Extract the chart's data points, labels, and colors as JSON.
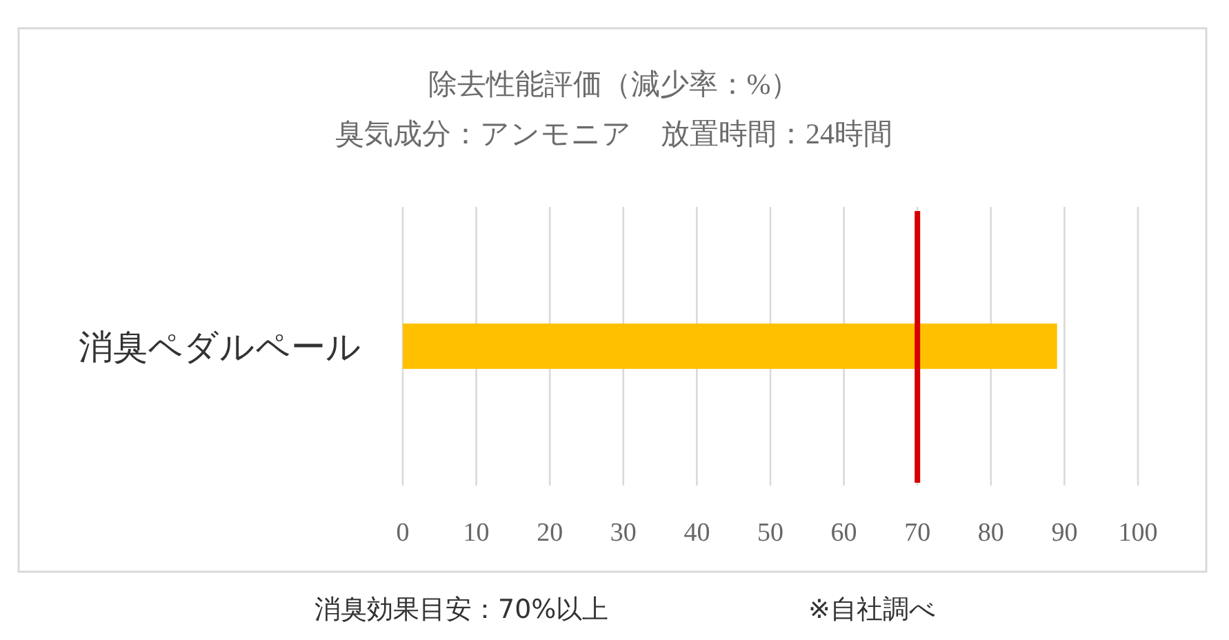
{
  "chart_data": {
    "type": "bar",
    "orientation": "horizontal",
    "title": "除去性能評価（減少率：%）",
    "subtitle": "臭気成分：アンモニア　放置時間：24時間",
    "categories": [
      "消臭ペダルペール"
    ],
    "values": [
      89
    ],
    "color": "#ffc000",
    "xlim": [
      0,
      100
    ],
    "xticks": [
      0,
      10,
      20,
      30,
      40,
      50,
      60,
      70,
      80,
      90,
      100
    ],
    "grid": "x",
    "ref_lines": [
      {
        "axis": "x",
        "value": 70,
        "color": "#d40000"
      }
    ],
    "annotations": [
      "消臭効果目安：70%以上",
      "※自社調べ"
    ]
  }
}
